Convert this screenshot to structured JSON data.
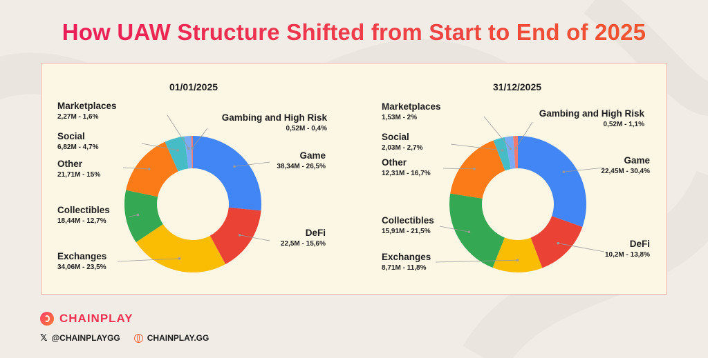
{
  "title": "How UAW Structure Shifted from Start to End of 2025",
  "chart_data": [
    {
      "type": "donut",
      "title": "01/01/2025",
      "series": [
        {
          "name": "Game",
          "value": 26.5,
          "label": "38,34M - 26,5%",
          "color": "#4285f4"
        },
        {
          "name": "DeFi",
          "value": 15.6,
          "label": "22,5M - 15,6%",
          "color": "#ea4335"
        },
        {
          "name": "Exchanges",
          "value": 23.5,
          "label": "34,06M - 23,5%",
          "color": "#fbbc04"
        },
        {
          "name": "Collectibles",
          "value": 12.7,
          "label": "18,44M - 12,7%",
          "color": "#34a853"
        },
        {
          "name": "Other",
          "value": 15.0,
          "label": "21,71M - 15%",
          "color": "#fa7b17"
        },
        {
          "name": "Social",
          "value": 4.7,
          "label": "6,82M - 4,7%",
          "color": "#46bdc6"
        },
        {
          "name": "Marketplaces",
          "value": 1.6,
          "label": "2,27M - 1,6%",
          "color": "#7baaf7"
        },
        {
          "name": "Gambing and High Risk",
          "value": 0.4,
          "label": "0,52M - 0,4%",
          "color": "#f07b72"
        }
      ]
    },
    {
      "type": "donut",
      "title": "31/12/2025",
      "series": [
        {
          "name": "Game",
          "value": 30.4,
          "label": "22,45M - 30,4%",
          "color": "#4285f4"
        },
        {
          "name": "DeFi",
          "value": 13.8,
          "label": "10,2M - 13,8%",
          "color": "#ea4335"
        },
        {
          "name": "Exchanges",
          "value": 11.8,
          "label": "8,71M - 11,8%",
          "color": "#fbbc04"
        },
        {
          "name": "Collectibles",
          "value": 21.5,
          "label": "15,91M - 21,5%",
          "color": "#34a853"
        },
        {
          "name": "Other",
          "value": 16.7,
          "label": "12,31M - 16,7%",
          "color": "#fa7b17"
        },
        {
          "name": "Social",
          "value": 2.7,
          "label": "2,03M - 2,7%",
          "color": "#46bdc6"
        },
        {
          "name": "Marketplaces",
          "value": 2.0,
          "label": "1,53M - 2%",
          "color": "#7baaf7"
        },
        {
          "name": "Gambing and High Risk",
          "value": 1.1,
          "label": "0,52M - 1,1%",
          "color": "#f07b72"
        }
      ]
    }
  ],
  "footer": {
    "brand": "CHAINPLAY",
    "x_handle": "@CHAINPLAYGG",
    "website": "CHAINPLAY.GG"
  },
  "colors": {
    "title_gradient_start": "#e8165a",
    "title_gradient_end": "#f05a28",
    "panel_background": "#fcf6e5",
    "panel_border": "#f2a9a4"
  }
}
